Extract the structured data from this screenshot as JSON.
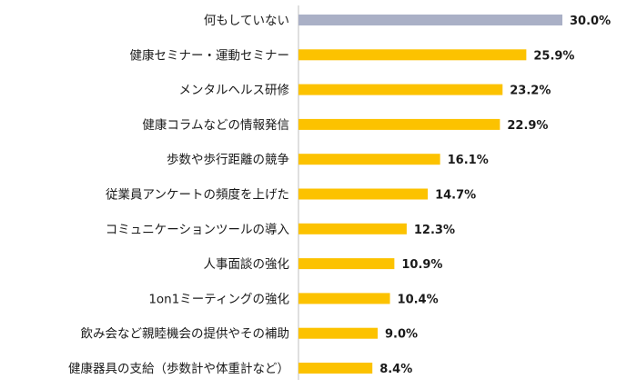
{
  "chart_data": {
    "type": "bar",
    "orientation": "horizontal",
    "categories": [
      "何もしていない",
      "健康セミナー・運動セミナー",
      "メンタルヘルス研修",
      "健康コラムなどの情報発信",
      "歩数や歩行距離の競争",
      "従業員アンケートの頻度を上げた",
      "コミュニケーションツールの導入",
      "人事面談の強化",
      "1on1ミーティングの強化",
      "飲み会など親睦機会の提供やその補助",
      "健康器具の支給（歩数計や体重計など）"
    ],
    "values": [
      30.0,
      25.9,
      23.2,
      22.9,
      16.1,
      14.7,
      12.3,
      10.9,
      10.4,
      9.0,
      8.4
    ],
    "value_labels": [
      "30.0%",
      "25.9%",
      "23.2%",
      "22.9%",
      "16.1%",
      "14.7%",
      "12.3%",
      "10.9%",
      "10.4%",
      "9.0%",
      "8.4%"
    ],
    "colors": {
      "highlight": "#aab0c6",
      "default": "#fcc200"
    },
    "highlight_index": 0,
    "xlim": [
      0,
      30.0
    ],
    "grid": false,
    "legend": "none"
  }
}
